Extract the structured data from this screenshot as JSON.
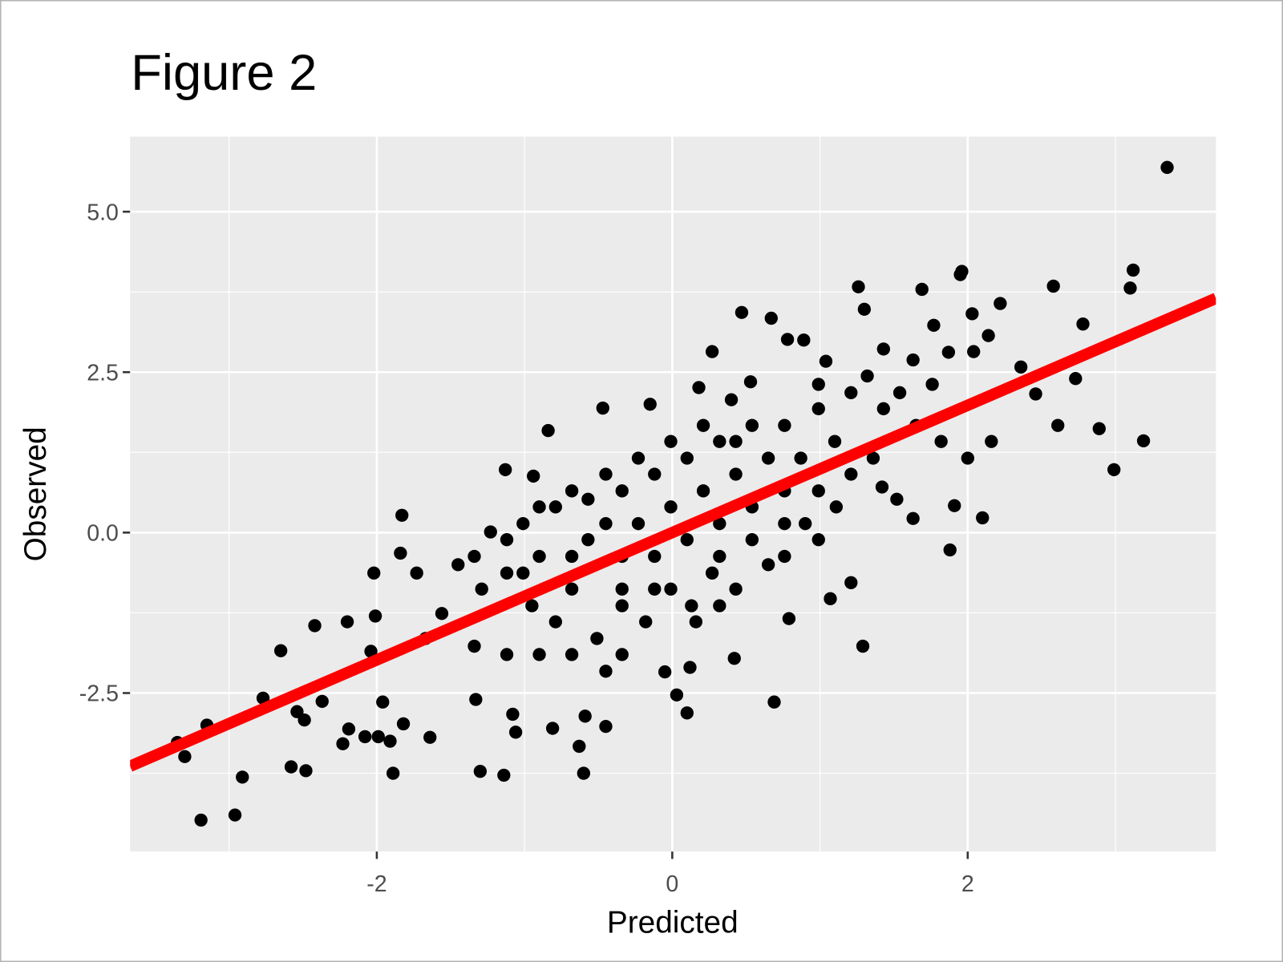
{
  "chart_data": {
    "type": "scatter",
    "title": "Figure 2",
    "x_label": "Predicted",
    "y_label": "Observed",
    "xlim": [
      -3.67,
      3.68
    ],
    "ylim": [
      -4.97,
      6.17
    ],
    "xticks": [
      -2,
      0,
      2
    ],
    "yticks": [
      {
        "value": -2.5,
        "label": "-2.5"
      },
      {
        "value": 0,
        "label": "0.0"
      },
      {
        "value": 2.5,
        "label": "2.5"
      },
      {
        "value": 5,
        "label": "5.0"
      }
    ],
    "grid": true,
    "minor_grid": true,
    "points": {
      "color": "#000000",
      "x": [
        3.35,
        3.12,
        3.1,
        3.19,
        2.99,
        2.89,
        2.78,
        2.73,
        2.61,
        2.58,
        2.46,
        2.36,
        2.22,
        2.14,
        2.03,
        1.96,
        1.95,
        1.69,
        1.77,
        1.26,
        1.3,
        0.47,
        0.67,
        0.27,
        2.1,
        1.91,
        1.88,
        1.63,
        1.29,
        1.07,
        1.21,
        0.69,
        0.79,
        0.42,
        0.1,
        0.12,
        0.03,
        -0.05,
        -0.6,
        -0.63,
        -0.45,
        -0.59,
        -0.81,
        -1.14,
        -1.3,
        -1.06,
        -1.08,
        -1.33,
        -1.64,
        -1.89,
        -1.91,
        -1.99,
        -2.08,
        -2.23,
        -2.19,
        -1.82,
        -1.96,
        -2.48,
        -2.58,
        -2.49,
        -2.54,
        -2.37,
        -2.77,
        -2.65,
        -2.42,
        -2.2,
        -2.91,
        -2.96,
        -3.19,
        -3.3,
        -3.35,
        -3.15,
        -2.04,
        -2.01,
        -2.02,
        -1.83,
        -1.84,
        -1.13,
        -0.94,
        -0.84,
        -0.47,
        -0.15,
        0.18,
        0.4,
        0.53,
        0.78,
        0.89,
        1.04,
        1.43,
        1.63,
        1.87,
        2.04,
        1.52,
        1.42,
        1.36,
        1.11,
        0.9,
        0.65,
        0.43,
        0.27,
        0.13,
        -0.01,
        -0.18,
        -0.34,
        -0.51,
        -0.68,
        -0.79,
        -0.95,
        -1.12,
        -1.29,
        -1.45,
        -1.56,
        -1.67,
        -1.73,
        -1.23,
        -1.01,
        -0.79,
        -0.57,
        -0.34,
        -0.12,
        0.1,
        0.32,
        0.54,
        0.76,
        0.99,
        1.21,
        1.43,
        1.65,
        1.82,
        2.0,
        2.16,
        0.76,
        0.54,
        0.32,
        0.1,
        -0.12,
        -0.34,
        -0.57,
        -0.68,
        0.21,
        0.43,
        -0.01,
        -0.23,
        -0.45,
        0.87,
        0.99,
        1.21,
        1.1,
        0.65,
        0.43,
        0.21,
        -0.01,
        -0.23,
        -0.45,
        -0.68,
        -0.9,
        -1.12,
        -1.34,
        -0.9,
        -1.01,
        -0.34,
        -0.12,
        0.32,
        0.54,
        0.76,
        0.99,
        0.76,
        0.16,
        0.32,
        -0.68,
        -0.9,
        -1.12,
        -1.34,
        -0.34,
        -0.45,
        1.54,
        1.76,
        1.32,
        0.99
      ],
      "y": [
        5.69,
        4.09,
        3.81,
        1.43,
        0.98,
        1.62,
        3.25,
        2.4,
        1.67,
        3.84,
        2.16,
        2.58,
        3.57,
        3.07,
        3.41,
        4.07,
        4.02,
        3.79,
        3.23,
        3.83,
        3.48,
        3.43,
        3.34,
        2.82,
        0.23,
        0.42,
        -0.27,
        0.22,
        -1.77,
        -1.03,
        -0.78,
        -2.64,
        -1.34,
        -1.96,
        -2.81,
        -2.1,
        -2.53,
        -2.17,
        -3.75,
        -3.33,
        -3.02,
        -2.86,
        -3.05,
        -3.78,
        -3.72,
        -3.11,
        -2.83,
        -2.6,
        -3.19,
        -3.75,
        -3.25,
        -3.18,
        -3.18,
        -3.29,
        -3.06,
        -2.98,
        -2.64,
        -3.71,
        -3.65,
        -2.92,
        -2.79,
        -2.63,
        -2.58,
        -1.84,
        -1.45,
        -1.39,
        -3.81,
        -4.4,
        -4.48,
        -3.49,
        -3.27,
        -3.0,
        -1.85,
        -1.3,
        -0.63,
        0.27,
        -0.32,
        0.98,
        0.88,
        1.59,
        1.94,
        2.0,
        2.26,
        2.07,
        2.35,
        3.01,
        3.0,
        2.67,
        2.86,
        2.69,
        2.81,
        2.82,
        0.52,
        0.71,
        1.16,
        0.4,
        0.14,
        -0.5,
        -0.88,
        -0.63,
        -1.14,
        -0.88,
        -1.39,
        -1.14,
        -1.65,
        -0.88,
        -1.39,
        -1.14,
        -0.63,
        -0.88,
        -0.5,
        -1.26,
        -1.65,
        -0.63,
        0.01,
        0.14,
        0.4,
        0.52,
        0.65,
        0.91,
        1.16,
        1.42,
        1.67,
        1.67,
        1.93,
        2.18,
        1.93,
        1.67,
        1.42,
        1.16,
        1.42,
        0.65,
        0.4,
        0.14,
        -0.11,
        -0.37,
        -0.37,
        -0.11,
        -0.37,
        0.65,
        0.91,
        0.4,
        0.14,
        0.14,
        1.16,
        0.65,
        0.91,
        1.42,
        1.16,
        1.42,
        1.67,
        1.42,
        1.16,
        0.91,
        0.65,
        0.4,
        -0.11,
        -0.37,
        -0.37,
        -0.63,
        -0.88,
        -0.88,
        -0.37,
        -0.11,
        0.14,
        -0.11,
        -0.37,
        -1.39,
        -1.14,
        -1.9,
        -1.9,
        -1.9,
        -1.77,
        -1.9,
        -2.16,
        2.18,
        2.31,
        2.44,
        2.31
      ]
    },
    "fit_line": {
      "color": "#ff0000",
      "x": [
        -3.67,
        3.68
      ],
      "y": [
        -3.64,
        3.65
      ]
    }
  }
}
